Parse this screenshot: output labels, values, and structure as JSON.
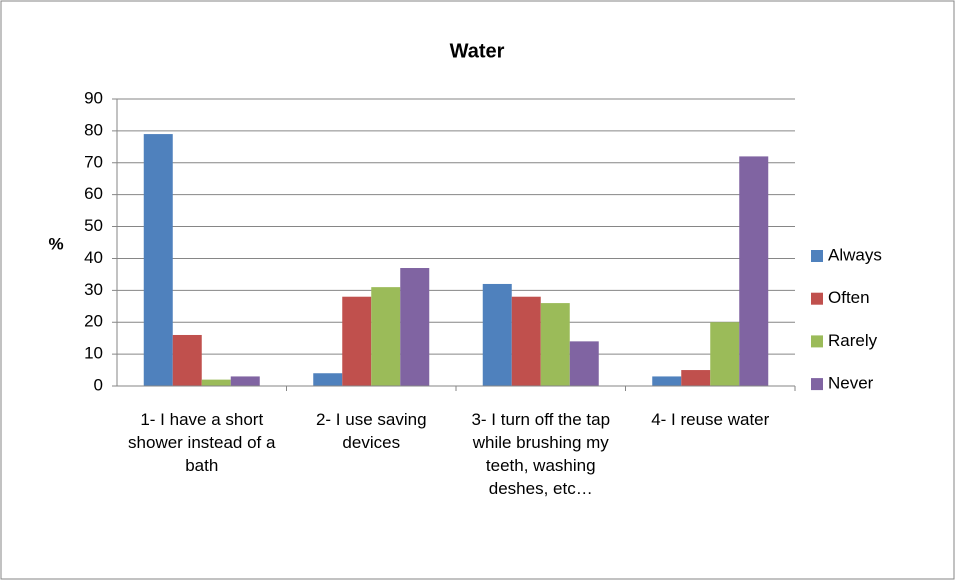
{
  "chart_data": {
    "type": "bar",
    "title": "Water",
    "y_label": "%",
    "categories": [
      "1- I have a short shower instead of a bath",
      "2- I use saving devices",
      "3- I turn off the tap while brushing my teeth, washing deshes, etc…",
      "4- I reuse water"
    ],
    "series": [
      {
        "name": "Always",
        "color": "#4f81bd",
        "values": [
          79,
          4,
          32,
          3
        ]
      },
      {
        "name": "Often",
        "color": "#c0504d",
        "values": [
          16,
          28,
          28,
          5
        ]
      },
      {
        "name": "Rarely",
        "color": "#9bbb59",
        "values": [
          2,
          31,
          26,
          20
        ]
      },
      {
        "name": "Never",
        "color": "#8064a2",
        "values": [
          3,
          37,
          14,
          72
        ]
      }
    ],
    "ylim": [
      0,
      90
    ],
    "yticks": [
      0,
      10,
      20,
      30,
      40,
      50,
      60,
      70,
      80,
      90
    ],
    "grid": true,
    "legend": "right"
  }
}
